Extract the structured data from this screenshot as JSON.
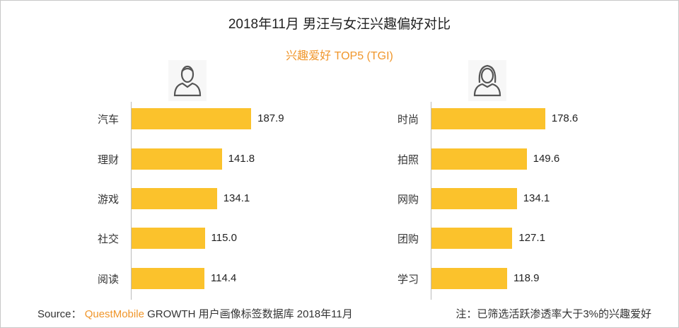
{
  "title": "2018年11月 男汪与女汪兴趣偏好对比",
  "subtitle": "兴趣爱好 TOP5 (TGI)",
  "colors": {
    "bar": "#fbc22c",
    "accent": "#f0962b"
  },
  "icons": {
    "left": "male-user-icon",
    "right": "female-user-icon"
  },
  "chart_data": [
    {
      "type": "bar",
      "orientation": "horizontal",
      "group": "male",
      "categories": [
        "汽车",
        "理财",
        "游戏",
        "社交",
        "阅读"
      ],
      "values": [
        187.9,
        141.8,
        134.1,
        115.0,
        114.4
      ],
      "labels": [
        "187.9",
        "141.8",
        "134.1",
        "115.0",
        "114.4"
      ],
      "xlim": [
        0,
        190
      ],
      "grid": false
    },
    {
      "type": "bar",
      "orientation": "horizontal",
      "group": "female",
      "categories": [
        "时尚",
        "拍照",
        "网购",
        "团购",
        "学习"
      ],
      "values": [
        178.6,
        149.6,
        134.1,
        127.1,
        118.9
      ],
      "labels": [
        "178.6",
        "149.6",
        "134.1",
        "127.1",
        "118.9"
      ],
      "xlim": [
        0,
        190
      ],
      "grid": false
    }
  ],
  "footer": {
    "source_label": "Source：",
    "brand": "QuestMobile",
    "source_text": "GROWTH 用户画像标签数据库 2018年11月",
    "note": "注：已筛选活跃渗透率大于3%的兴趣爱好"
  }
}
